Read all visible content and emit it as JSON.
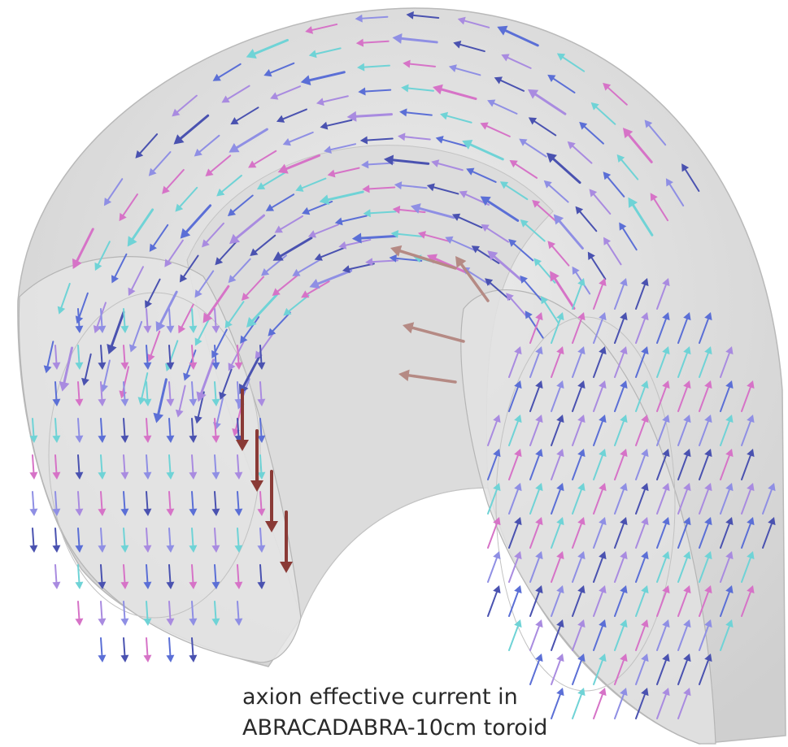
{
  "caption": {
    "lines": [
      "axion effective current in",
      "ABRACADABRA-10cm toroid"
    ]
  }
}
